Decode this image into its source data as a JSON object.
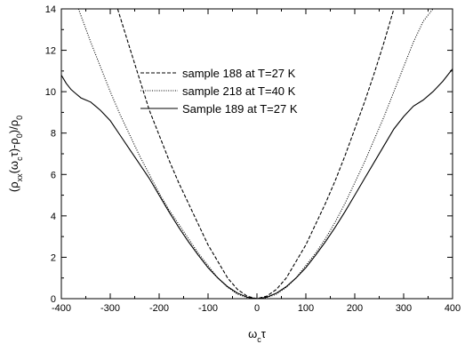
{
  "chart_data": {
    "type": "line",
    "title": "",
    "xlabel": "ωcτ",
    "ylabel": "(ρxx(ωcτ)-ρ0)/ρ0",
    "xlim": [
      -400,
      400
    ],
    "ylim": [
      0,
      14
    ],
    "x_ticks": [
      "-400",
      "-300",
      "-200",
      "-100",
      "0",
      "100",
      "200",
      "300",
      "400"
    ],
    "y_ticks": [
      "0",
      "2",
      "4",
      "6",
      "8",
      "10",
      "12",
      "14"
    ],
    "legend_position": "center",
    "grid": false,
    "series": [
      {
        "name": "sample 188 at T=27 K",
        "style": "dashed",
        "x": [
          -285,
          -260,
          -240,
          -220,
          -200,
          -180,
          -160,
          -140,
          -120,
          -100,
          -80,
          -60,
          -40,
          -20,
          0,
          20,
          40,
          60,
          80,
          100,
          120,
          140,
          160,
          180,
          200,
          220,
          240,
          260,
          280
        ],
        "y": [
          14.0,
          12.1,
          10.6,
          9.1,
          7.9,
          6.7,
          5.6,
          4.6,
          3.6,
          2.6,
          1.8,
          1.0,
          0.45,
          0.12,
          0.0,
          0.12,
          0.45,
          1.0,
          1.8,
          2.6,
          3.6,
          4.6,
          5.7,
          6.9,
          8.2,
          9.5,
          10.9,
          12.4,
          14.0
        ]
      },
      {
        "name": "sample 218 at T=40 K",
        "style": "dotted",
        "x": [
          -365,
          -340,
          -320,
          -300,
          -280,
          -260,
          -240,
          -220,
          -200,
          -180,
          -160,
          -140,
          -120,
          -100,
          -80,
          -60,
          -40,
          -20,
          0,
          20,
          40,
          60,
          80,
          100,
          120,
          140,
          160,
          180,
          200,
          220,
          240,
          260,
          280,
          300,
          320,
          340,
          360
        ],
        "y": [
          14.0,
          12.4,
          11.2,
          10.0,
          8.9,
          7.9,
          6.9,
          6.0,
          5.1,
          4.3,
          3.6,
          2.9,
          2.2,
          1.6,
          1.0,
          0.55,
          0.22,
          0.05,
          0.0,
          0.05,
          0.22,
          0.55,
          1.0,
          1.6,
          2.2,
          2.9,
          3.7,
          4.6,
          5.6,
          6.6,
          7.7,
          8.8,
          10.0,
          11.2,
          12.4,
          13.4,
          14.0
        ]
      },
      {
        "name": "Sample 189 at T=27 K",
        "style": "solid",
        "x": [
          -400,
          -390,
          -380,
          -370,
          -360,
          -350,
          -340,
          -330,
          -320,
          -300,
          -280,
          -260,
          -240,
          -220,
          -200,
          -180,
          -160,
          -140,
          -120,
          -100,
          -80,
          -60,
          -40,
          -20,
          0,
          20,
          40,
          60,
          80,
          100,
          120,
          140,
          160,
          180,
          200,
          220,
          240,
          260,
          280,
          300,
          320,
          340,
          360,
          380,
          400
        ],
        "y": [
          10.8,
          10.4,
          10.1,
          9.9,
          9.7,
          9.6,
          9.5,
          9.3,
          9.1,
          8.6,
          7.9,
          7.2,
          6.5,
          5.8,
          5.0,
          4.2,
          3.45,
          2.75,
          2.1,
          1.5,
          1.0,
          0.58,
          0.27,
          0.07,
          0.0,
          0.07,
          0.27,
          0.58,
          1.0,
          1.5,
          2.1,
          2.75,
          3.45,
          4.2,
          5.0,
          5.8,
          6.6,
          7.4,
          8.2,
          8.8,
          9.3,
          9.6,
          10.0,
          10.5,
          11.1
        ]
      }
    ]
  }
}
